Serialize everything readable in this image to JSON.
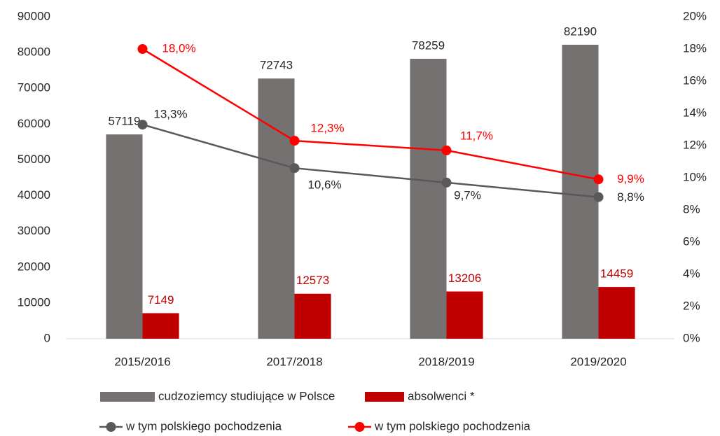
{
  "chart_data": {
    "type": "bar",
    "categories": [
      "2015/2016",
      "2017/2018",
      "2018/2019",
      "2019/2020"
    ],
    "series": [
      {
        "name": "cudzoziemcy studiujące w Polsce",
        "type": "bar",
        "color": "#767171",
        "values": [
          57119,
          72743,
          78259,
          82190
        ]
      },
      {
        "name": "absolwenci *",
        "type": "bar",
        "color": "#c00000",
        "values": [
          7149,
          12573,
          13206,
          14459
        ]
      },
      {
        "name": "w tym polskiego pochodzenia",
        "type": "line",
        "axis": "y2",
        "color": "#595959",
        "values": [
          13.3,
          10.6,
          9.7,
          8.8
        ],
        "value_labels": [
          "13,3%",
          "10,6%",
          "9,7%",
          "8,8%"
        ]
      },
      {
        "name": "w tym polskiego pochodzenia",
        "type": "line",
        "axis": "y2",
        "color": "#ff0000",
        "values": [
          18.0,
          12.3,
          11.7,
          9.9
        ],
        "value_labels": [
          "18,0%",
          "12,3%",
          "11,7%",
          "9,9%"
        ]
      }
    ],
    "ylim": [
      0,
      90000
    ],
    "yticks": [
      0,
      10000,
      20000,
      30000,
      40000,
      50000,
      60000,
      70000,
      80000,
      90000
    ],
    "y2lim": [
      0,
      20
    ],
    "y2ticks": [
      {
        "value": 0,
        "label": "0%"
      },
      {
        "value": 2,
        "label": "2%"
      },
      {
        "value": 4,
        "label": "4%"
      },
      {
        "value": 6,
        "label": "6%"
      },
      {
        "value": 8,
        "label": "8%"
      },
      {
        "value": 10,
        "label": "10%"
      },
      {
        "value": 12,
        "label": "12%"
      },
      {
        "value": 14,
        "label": "14%"
      },
      {
        "value": 16,
        "label": "16%"
      },
      {
        "value": 18,
        "label": "18%"
      },
      {
        "value": 20,
        "label": "20%"
      }
    ],
    "grid": false,
    "legend": "bottom"
  }
}
